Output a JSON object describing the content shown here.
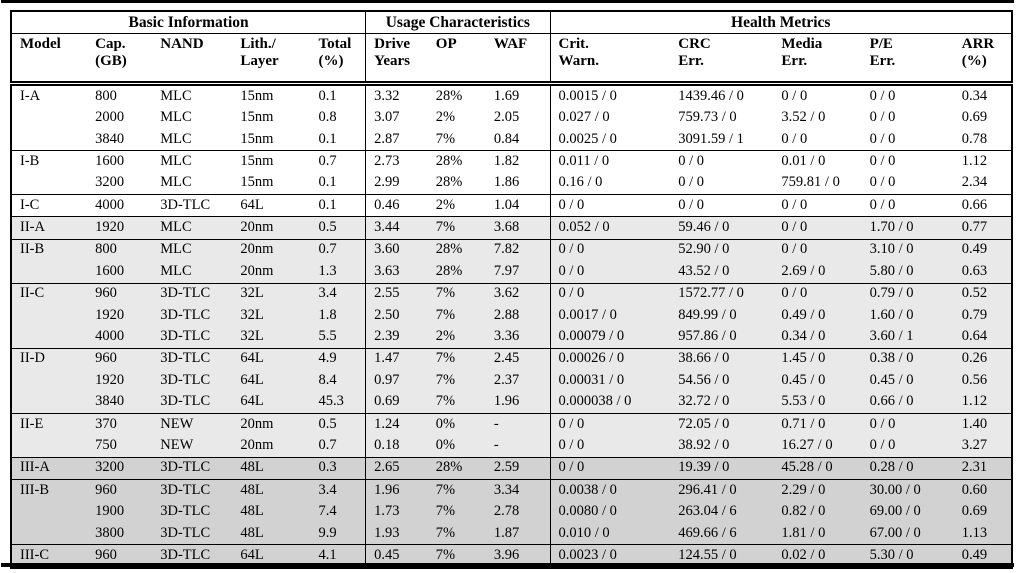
{
  "table": {
    "section_headers": [
      {
        "label": "Basic Information"
      },
      {
        "label": "Usage Characteristics"
      },
      {
        "label": "Health Metrics"
      }
    ],
    "columns": [
      {
        "line1": "Model",
        "line2": ""
      },
      {
        "line1": "Cap.",
        "line2": "(GB)"
      },
      {
        "line1": "NAND",
        "line2": ""
      },
      {
        "line1": "Lith./",
        "line2": "Layer"
      },
      {
        "line1": "Total",
        "line2": "(%)"
      },
      {
        "line1": "Drive",
        "line2": "Years"
      },
      {
        "line1": "OP",
        "line2": ""
      },
      {
        "line1": "WAF",
        "line2": ""
      },
      {
        "line1": "Crit.",
        "line2": "Warn."
      },
      {
        "line1": "CRC",
        "line2": "Err."
      },
      {
        "line1": "Media",
        "line2": "Err."
      },
      {
        "line1": "P/E",
        "line2": "Err."
      },
      {
        "line1": "ARR",
        "line2": "(%)"
      }
    ],
    "groups": [
      {
        "model": "I-A",
        "section": "I",
        "rows": [
          [
            "800",
            "MLC",
            "15nm",
            "0.1",
            "3.32",
            "28%",
            "1.69",
            "0.0015 / 0",
            "1439.46 / 0",
            "0 / 0",
            "0 / 0",
            "0.34"
          ],
          [
            "2000",
            "MLC",
            "15nm",
            "0.8",
            "3.07",
            "2%",
            "2.05",
            "0.027 / 0",
            "759.73 / 0",
            "3.52 / 0",
            "0 / 0",
            "0.69"
          ],
          [
            "3840",
            "MLC",
            "15nm",
            "0.1",
            "2.87",
            "7%",
            "0.84",
            "0.0025 / 0",
            "3091.59 / 1",
            "0 / 0",
            "0 / 0",
            "0.78"
          ]
        ]
      },
      {
        "model": "I-B",
        "section": "I",
        "rows": [
          [
            "1600",
            "MLC",
            "15nm",
            "0.7",
            "2.73",
            "28%",
            "1.82",
            "0.011 / 0",
            "0 / 0",
            "0.01 / 0",
            "0 / 0",
            "1.12"
          ],
          [
            "3200",
            "MLC",
            "15nm",
            "0.1",
            "2.99",
            "28%",
            "1.86",
            "0.16 / 0",
            "0 / 0",
            "759.81 / 0",
            "0 / 0",
            "2.34"
          ]
        ]
      },
      {
        "model": "I-C",
        "section": "I",
        "rows": [
          [
            "4000",
            "3D-TLC",
            "64L",
            "0.1",
            "0.46",
            "2%",
            "1.04",
            "0 / 0",
            "0 / 0",
            "0 / 0",
            "0 / 0",
            "0.66"
          ]
        ]
      },
      {
        "model": "II-A",
        "section": "II",
        "rows": [
          [
            "1920",
            "MLC",
            "20nm",
            "0.5",
            "3.44",
            "7%",
            "3.68",
            "0.052 / 0",
            "59.46 / 0",
            "0 / 0",
            "1.70 / 0",
            "0.77"
          ]
        ]
      },
      {
        "model": "II-B",
        "section": "II",
        "rows": [
          [
            "800",
            "MLC",
            "20nm",
            "0.7",
            "3.60",
            "28%",
            "7.82",
            "0 / 0",
            "52.90 / 0",
            "0 / 0",
            "3.10 / 0",
            "0.49"
          ],
          [
            "1600",
            "MLC",
            "20nm",
            "1.3",
            "3.63",
            "28%",
            "7.97",
            "0 / 0",
            "43.52 / 0",
            "2.69 / 0",
            "5.80 / 0",
            "0.63"
          ]
        ]
      },
      {
        "model": "II-C",
        "section": "II",
        "rows": [
          [
            "960",
            "3D-TLC",
            "32L",
            "3.4",
            "2.55",
            "7%",
            "3.62",
            "0 / 0",
            "1572.77 / 0",
            "0 / 0",
            "0.79 / 0",
            "0.52"
          ],
          [
            "1920",
            "3D-TLC",
            "32L",
            "1.8",
            "2.50",
            "7%",
            "2.88",
            "0.0017 / 0",
            "849.99 / 0",
            "0.49 / 0",
            "1.60 / 0",
            "0.79"
          ],
          [
            "4000",
            "3D-TLC",
            "32L",
            "5.5",
            "2.39",
            "2%",
            "3.36",
            "0.00079 / 0",
            "957.86 / 0",
            "0.34 / 0",
            "3.60 / 1",
            "0.64"
          ]
        ]
      },
      {
        "model": "II-D",
        "section": "II",
        "rows": [
          [
            "960",
            "3D-TLC",
            "64L",
            "4.9",
            "1.47",
            "7%",
            "2.45",
            "0.00026 / 0",
            "38.66 / 0",
            "1.45 / 0",
            "0.38 / 0",
            "0.26"
          ],
          [
            "1920",
            "3D-TLC",
            "64L",
            "8.4",
            "0.97",
            "7%",
            "2.37",
            "0.00031 / 0",
            "54.56 / 0",
            "0.45 / 0",
            "0.45 / 0",
            "0.56"
          ],
          [
            "3840",
            "3D-TLC",
            "64L",
            "45.3",
            "0.69",
            "7%",
            "1.96",
            "0.000038 / 0",
            "32.72 / 0",
            "5.53 / 0",
            "0.66 / 0",
            "1.12"
          ]
        ]
      },
      {
        "model": "II-E",
        "section": "II",
        "rows": [
          [
            "370",
            "NEW",
            "20nm",
            "0.5",
            "1.24",
            "0%",
            "-",
            "0 / 0",
            "72.05 / 0",
            "0.71 / 0",
            "0 / 0",
            "1.40"
          ],
          [
            "750",
            "NEW",
            "20nm",
            "0.7",
            "0.18",
            "0%",
            "-",
            "0 / 0",
            "38.92 / 0",
            "16.27 / 0",
            "0 / 0",
            "3.27"
          ]
        ]
      },
      {
        "model": "III-A",
        "section": "III",
        "rows": [
          [
            "3200",
            "3D-TLC",
            "48L",
            "0.3",
            "2.65",
            "28%",
            "2.59",
            "0 / 0",
            "19.39 / 0",
            "45.28 / 0",
            "0.28 / 0",
            "2.31"
          ]
        ]
      },
      {
        "model": "III-B",
        "section": "III",
        "rows": [
          [
            "960",
            "3D-TLC",
            "48L",
            "3.4",
            "1.96",
            "7%",
            "3.34",
            "0.0038 / 0",
            "296.41 / 0",
            "2.29 / 0",
            "30.00 / 0",
            "0.60"
          ],
          [
            "1900",
            "3D-TLC",
            "48L",
            "7.4",
            "1.73",
            "7%",
            "2.78",
            "0.0080 / 0",
            "263.04 / 6",
            "0.82 / 0",
            "69.00 / 0",
            "0.69"
          ],
          [
            "3800",
            "3D-TLC",
            "48L",
            "9.9",
            "1.93",
            "7%",
            "1.87",
            "0.010 / 0",
            "469.66 / 6",
            "1.81 / 0",
            "67.00 / 0",
            "1.13"
          ]
        ]
      },
      {
        "model": "III-C",
        "section": "III",
        "rows": [
          [
            "960",
            "3D-TLC",
            "64L",
            "4.1",
            "0.45",
            "7%",
            "3.96",
            "0.0023 / 0",
            "124.55 / 0",
            "0.02 / 0",
            "5.30 / 0",
            "0.49"
          ]
        ]
      }
    ],
    "colors": {
      "border": "#000000",
      "section_I_bg": "#ffffff",
      "section_II_bg": "#e9e9e9",
      "section_III_bg": "#d2d2d2"
    }
  }
}
